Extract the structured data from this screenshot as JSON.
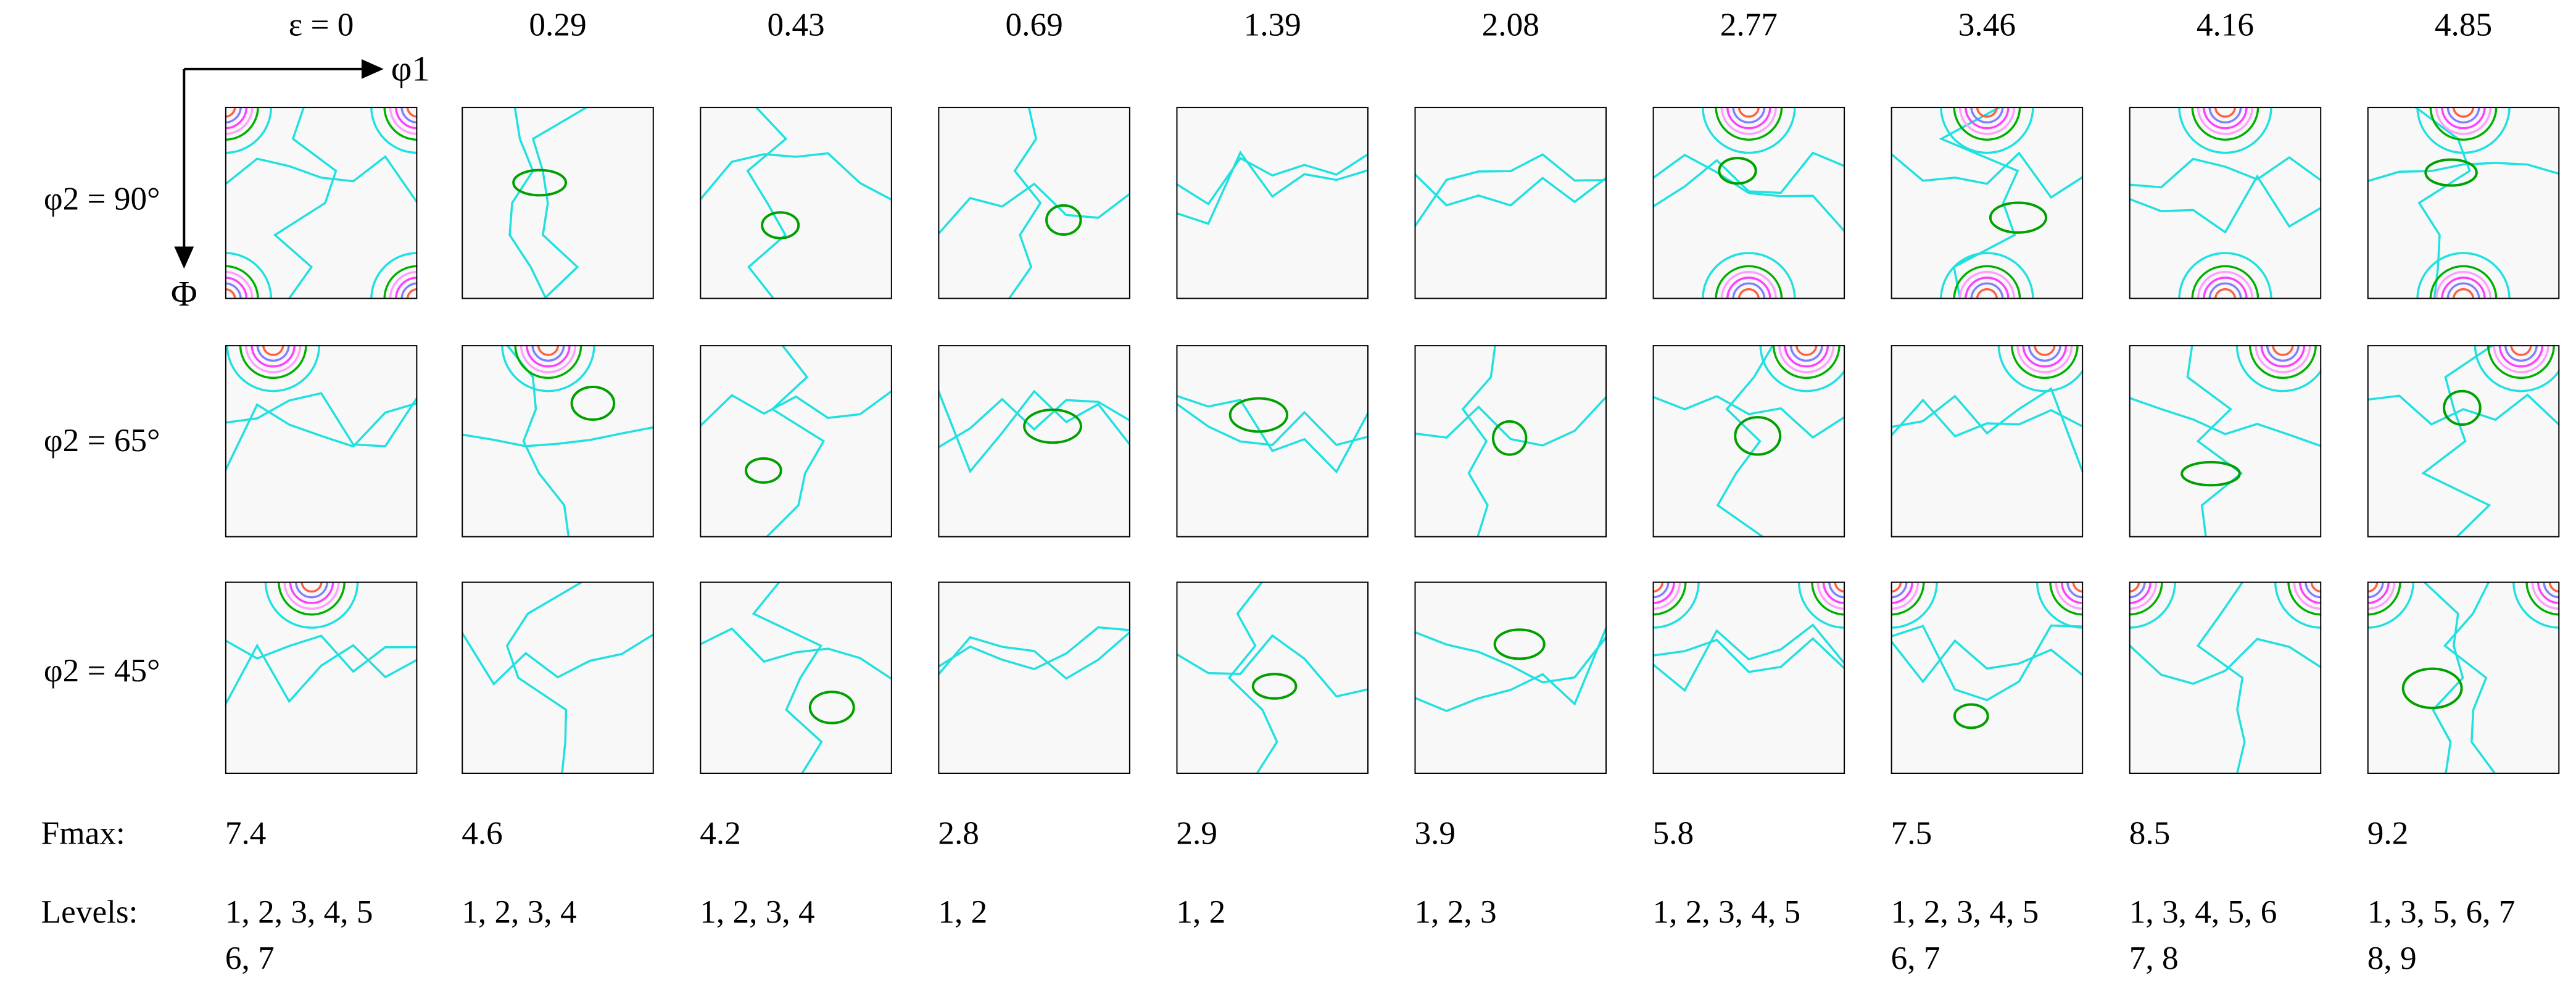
{
  "columns": [
    "ε = 0",
    "0.29",
    "0.43",
    "0.69",
    "1.39",
    "2.08",
    "2.77",
    "3.46",
    "4.16",
    "4.85"
  ],
  "rows": [
    "φ2 = 90°",
    "φ2 = 65°",
    "φ2 = 45°"
  ],
  "axes": {
    "x": "φ1",
    "y": "Φ"
  },
  "fmax": {
    "label": "Fmax:",
    "values": [
      7.4,
      4.6,
      4.2,
      2.8,
      2.9,
      3.9,
      5.8,
      7.5,
      8.5,
      9.2
    ]
  },
  "levels": {
    "label": "Levels:",
    "values": [
      [
        "1, 2, 3, 4, 5",
        "6, 7"
      ],
      [
        "1, 2, 3, 4"
      ],
      [
        "1, 2, 3, 4"
      ],
      [
        "1, 2"
      ],
      [
        "1, 2"
      ],
      [
        "1, 2, 3"
      ],
      [
        "1, 2, 3, 4, 5"
      ],
      [
        "1, 2, 3, 4, 5",
        "6, 7"
      ],
      [
        "1, 3, 4, 5, 6",
        "7, 8"
      ],
      [
        "1, 3, 5, 6, 7",
        "8, 9"
      ]
    ]
  }
}
